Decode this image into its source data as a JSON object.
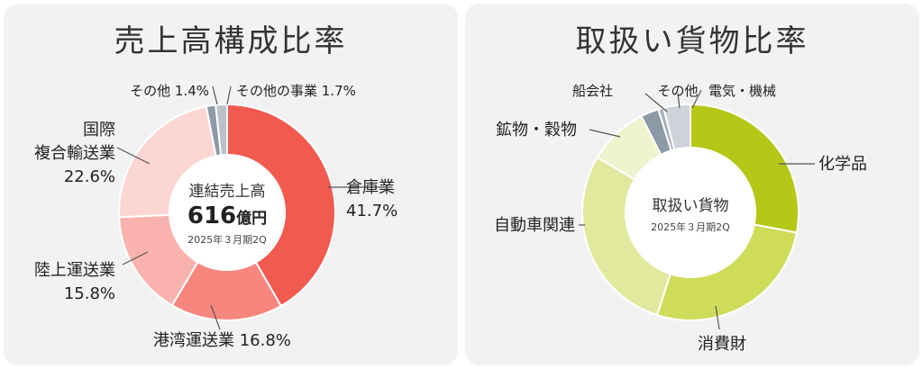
{
  "colors": {
    "panel_bg": "#f2f2f2",
    "line": "#555555",
    "center_fill": "#ffffff"
  },
  "chart_data": [
    {
      "type": "pie",
      "variant": "donut",
      "title": "売上高構成比率",
      "center": {
        "line1": "連結売上高",
        "amount_num": "616",
        "amount_unit": "億円",
        "period": "2025年３月期2Q"
      },
      "unit": "%",
      "slices": [
        {
          "label": "倉庫業",
          "value": 41.7,
          "color": "#f25a50"
        },
        {
          "label": "港湾運送業",
          "value": 16.8,
          "color": "#f7877e"
        },
        {
          "label": "陸上運送業",
          "value": 15.8,
          "color": "#f9b2ae"
        },
        {
          "label": "国際複合輸送業",
          "label_lines": [
            "国際",
            "複合輸送業"
          ],
          "value": 22.6,
          "color": "#fcd6d3"
        },
        {
          "label": "その他",
          "value": 1.4,
          "color": "#8d99a5"
        },
        {
          "label": "その他の事業",
          "value": 1.7,
          "color": "#b9c0c8"
        }
      ]
    },
    {
      "type": "pie",
      "variant": "donut",
      "title": "取扱い貨物比率",
      "center": {
        "line1": "取扱い貨物",
        "period": "2025年３月期2Q"
      },
      "slices": [
        {
          "label": "化学品",
          "value": 28.0,
          "color": "#b5c818"
        },
        {
          "label": "消費財",
          "value": 27.0,
          "color": "#cfdc5a"
        },
        {
          "label": "自動車関連",
          "value": 28.5,
          "color": "#e1e99f"
        },
        {
          "label": "鉱物・穀物",
          "value": 9.0,
          "color": "#eff3ce"
        },
        {
          "label": "船会社",
          "value": 2.7,
          "color": "#8d99a5"
        },
        {
          "label": "その他",
          "value": 0.8,
          "color": "#aab3bc"
        },
        {
          "label": "電気・機械",
          "value": 4.0,
          "color": "#cdd3d9"
        }
      ]
    }
  ]
}
